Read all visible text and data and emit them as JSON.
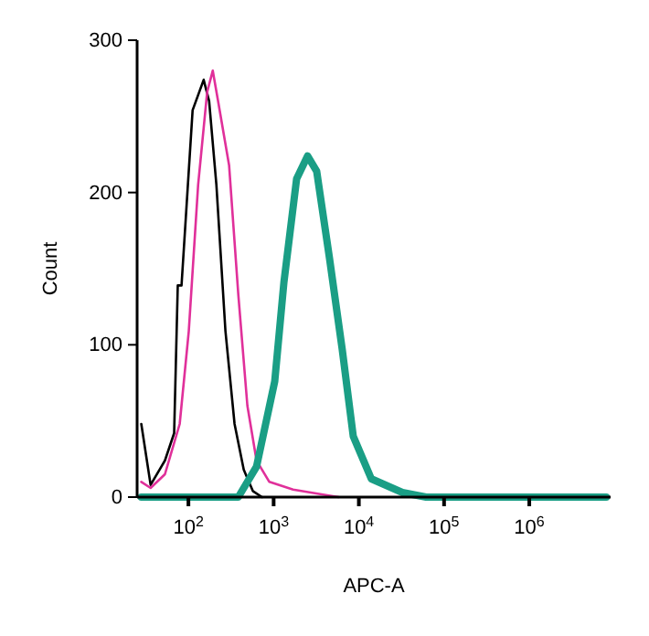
{
  "chart_data": {
    "type": "line",
    "xlabel": "APC-A",
    "ylabel": "Count",
    "log": "x",
    "xlim": [
      25,
      9000000
    ],
    "ylim": [
      0,
      300
    ],
    "xticks": [
      {
        "value": 100,
        "label": "10$^{2}$"
      },
      {
        "value": 1000,
        "label": "10$^{3}$"
      },
      {
        "value": 10000,
        "label": "10$^{4}$"
      },
      {
        "value": 100000,
        "label": "10$^{5}$"
      },
      {
        "value": 1000000,
        "label": "10$^{6}$"
      }
    ],
    "yticks": [
      0,
      100,
      200,
      300
    ],
    "grid": false,
    "marker": "none",
    "line_style": "solid",
    "series": [
      {
        "color": "#000000",
        "x": [
          28,
          36,
          53,
          68,
          75,
          83,
          112,
          151,
          175,
          213,
          272,
          348,
          446,
          570,
          730
        ],
        "values": [
          48,
          8,
          24,
          42,
          139,
          139,
          254,
          274,
          260,
          205,
          109,
          48,
          18,
          4,
          0
        ]
      },
      {
        "color": "#e0309a",
        "x": [
          28,
          36,
          53,
          79,
          101,
          130,
          166,
          193,
          223,
          300,
          385,
          492,
          630,
          890,
          1690,
          3530,
          5780
        ],
        "values": [
          10,
          6,
          15,
          48,
          109,
          205,
          266,
          280,
          260,
          218,
          133,
          60,
          24,
          10,
          5,
          2,
          0
        ]
      },
      {
        "color": "#1a9e85",
        "x": [
          28,
          234,
          385,
          630,
          1030,
          1320,
          1860,
          2500,
          3200,
          4520,
          6380,
          8590,
          14000,
          32500,
          61600,
          8000000
        ],
        "values": [
          0,
          0,
          0,
          20,
          76,
          141,
          209,
          224,
          214,
          157,
          97,
          40,
          12,
          3,
          0,
          0
        ]
      }
    ]
  }
}
